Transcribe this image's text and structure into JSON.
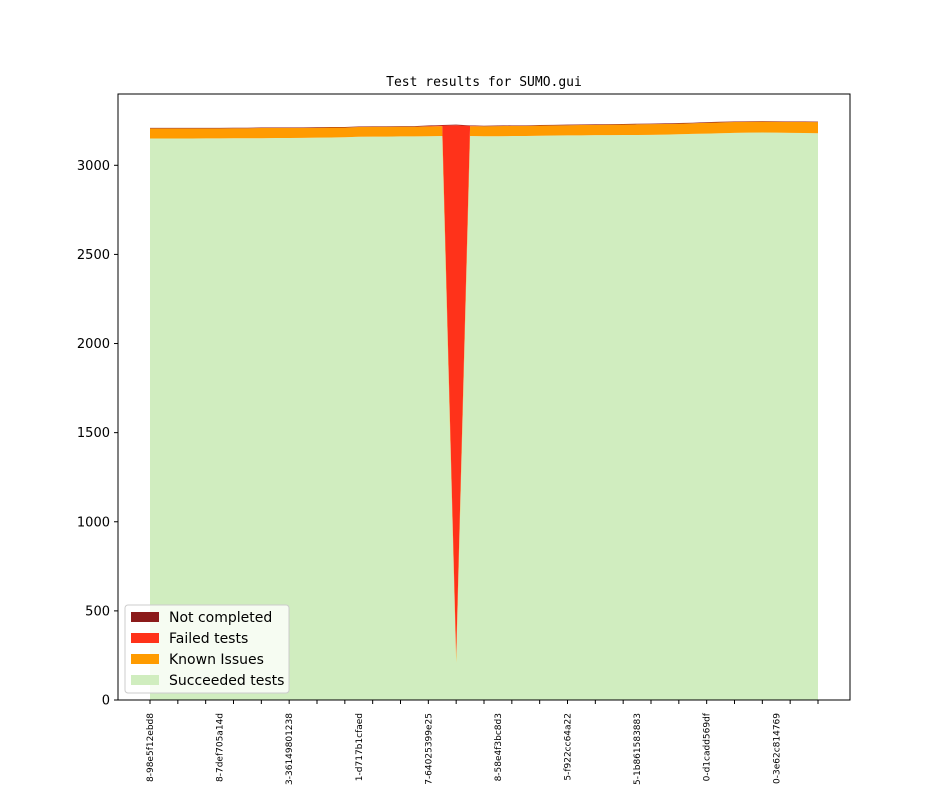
{
  "chart_data": {
    "type": "area",
    "stacked": true,
    "title": "Test results for SUMO.gui",
    "xlabel": "",
    "ylabel": "",
    "ylim": [
      0,
      3400
    ],
    "yticks": [
      0,
      500,
      1000,
      1500,
      2000,
      2500,
      3000
    ],
    "x_tick_labels": [
      "8-98e5f12ebd8",
      "8-7def705a14d",
      "3-3614980123​8",
      "1-d717b1cfaed",
      "7-64025399e25",
      "8-58e4f3bc8d3",
      "5-f922cc64a22",
      "5-1b861583883",
      "0-d1cadd569df",
      "0-3e62c814769"
    ],
    "x_tick_label_positions": [
      0,
      5,
      10,
      15,
      20,
      25,
      30,
      35,
      40,
      45
    ],
    "num_points": 49,
    "series": [
      {
        "name": "Succeeded tests",
        "color": "#d0edbf",
        "values": [
          3150,
          3150,
          3150,
          3150,
          3151,
          3151,
          3152,
          3152,
          3152,
          3153,
          3153,
          3154,
          3155,
          3156,
          3157,
          3160,
          3161,
          3161,
          3162,
          3162,
          3163,
          3164,
          210,
          3164,
          3163,
          3163,
          3164,
          3164,
          3166,
          3167,
          3168,
          3168,
          3169,
          3169,
          3170,
          3170,
          3171,
          3172,
          3174,
          3176,
          3178,
          3180,
          3182,
          3183,
          3184,
          3183,
          3182,
          3181,
          3180
        ]
      },
      {
        "name": "Known Issues",
        "color": "#ff9b00",
        "values": [
          57,
          57,
          57,
          57,
          56,
          56,
          56,
          56,
          57,
          56,
          56,
          56,
          56,
          56,
          55,
          55,
          55,
          55,
          55,
          55,
          55,
          56,
          40,
          55,
          56,
          57,
          57,
          57,
          57,
          57,
          57,
          58,
          58,
          59,
          59,
          60,
          60,
          60,
          60,
          60,
          61,
          61,
          61,
          61,
          61,
          61,
          61,
          62,
          62
        ]
      },
      {
        "name": "Failed tests",
        "color": "#ff321a",
        "values": [
          0,
          0,
          0,
          0,
          0,
          0,
          0,
          0,
          0,
          0,
          0,
          0,
          0,
          0,
          0,
          0,
          0,
          0,
          0,
          0,
          2,
          3,
          2975,
          2,
          0,
          0,
          0,
          0,
          0,
          0,
          0,
          0,
          0,
          0,
          0,
          0,
          0,
          0,
          0,
          0,
          0,
          0,
          0,
          0,
          0,
          0,
          0,
          0,
          0
        ]
      },
      {
        "name": "Not completed",
        "color": "#8b1a1a",
        "values": [
          3,
          3,
          3,
          3,
          3,
          3,
          3,
          3,
          3,
          3,
          3,
          3,
          3,
          3,
          3,
          3,
          3,
          3,
          3,
          3,
          3,
          3,
          3,
          3,
          3,
          3,
          3,
          3,
          3,
          3,
          3,
          3,
          3,
          3,
          3,
          3,
          3,
          3,
          3,
          3,
          3,
          3,
          3,
          3,
          3,
          3,
          3,
          3,
          3
        ]
      }
    ],
    "legend": {
      "placement": "lower-left",
      "entries": [
        {
          "label": "Not completed",
          "color": "#8b1a1a"
        },
        {
          "label": "Failed tests",
          "color": "#ff321a"
        },
        {
          "label": "Known Issues",
          "color": "#ff9b00"
        },
        {
          "label": "Succeeded tests",
          "color": "#d0edbf"
        }
      ]
    },
    "grid": false
  }
}
